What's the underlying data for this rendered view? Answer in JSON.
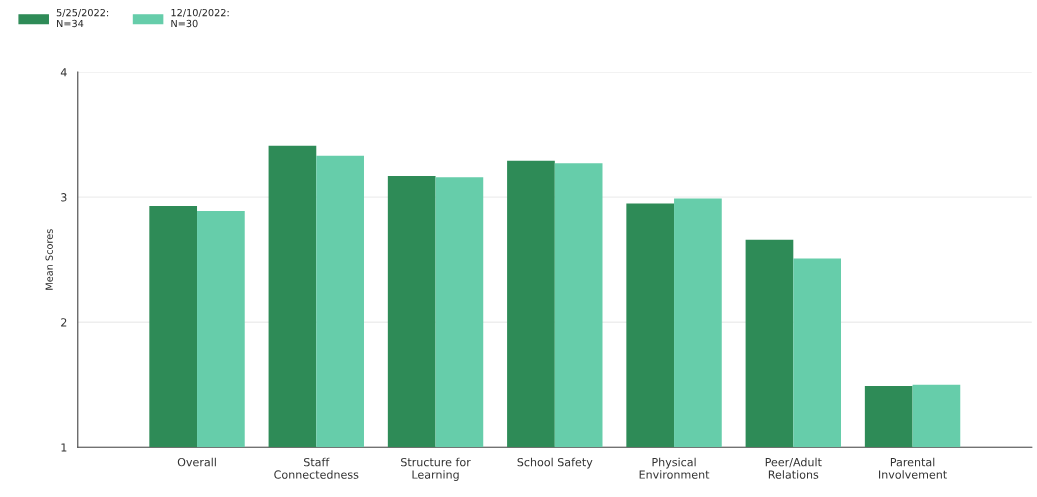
{
  "chart_data": {
    "type": "bar",
    "ylabel": "Mean Scores",
    "categories": [
      "Overall",
      "Staff\nConnectedness",
      "Structure for\nLearning",
      "School Safety",
      "Physical\nEnvironment",
      "Peer/Adult\nRelations",
      "Parental\nInvolvement"
    ],
    "series": [
      {
        "name": "5/25/2022:\nN=34",
        "color": "#2e8b57",
        "values": [
          2.93,
          3.41,
          3.17,
          3.29,
          2.95,
          2.66,
          1.49
        ]
      },
      {
        "name": "12/10/2022:\nN=30",
        "color": "#66cdaa",
        "values": [
          2.89,
          3.33,
          3.16,
          3.27,
          2.99,
          2.51,
          1.5
        ]
      }
    ],
    "ylim": [
      1,
      4
    ],
    "yticks": [
      1,
      2,
      3,
      4
    ],
    "grid": "y",
    "legend": "top left"
  }
}
